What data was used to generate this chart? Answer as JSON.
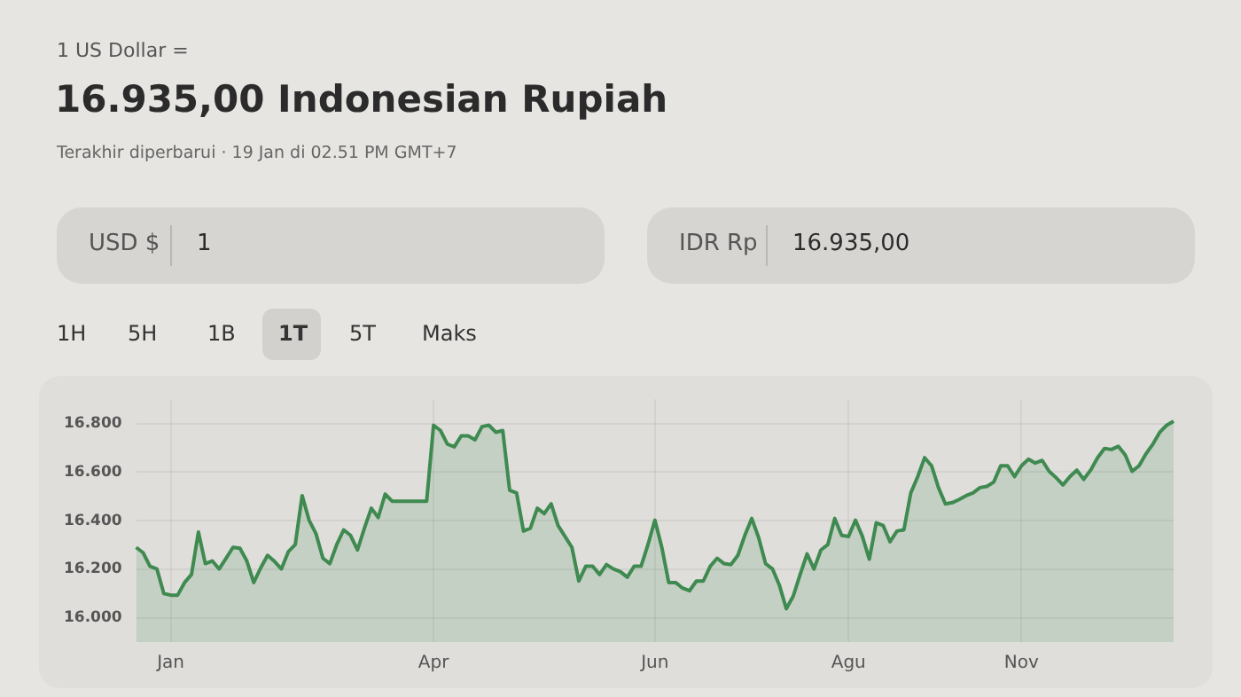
{
  "chart_data": {
    "type": "area",
    "title": "16.935,00 Indonesian Rupiah",
    "subtitle": "Terakhir diperbarui · 19 Jan di 02.51 PM GMT+7",
    "annotations": [
      "1 US Dollar =",
      "USD $",
      "1",
      "IDR Rp",
      "16.935,00",
      "1H",
      "5H",
      "1B",
      "1T",
      "5T",
      "Maks"
    ],
    "color": "#3f8a50",
    "categories": [
      null,
      null,
      null,
      null,
      null,
      "Jan",
      null,
      null,
      null,
      null,
      null,
      null,
      null,
      null,
      null,
      null,
      null,
      null,
      null,
      null,
      null,
      null,
      null,
      null,
      null,
      null,
      null,
      null,
      null,
      null,
      null,
      null,
      null,
      null,
      null,
      null,
      null,
      null,
      null,
      null,
      null,
      null,
      null,
      "Apr",
      null,
      null,
      null,
      null,
      null,
      null,
      null,
      null,
      null,
      null,
      null,
      null,
      null,
      null,
      null,
      null,
      null,
      null,
      null,
      null,
      null,
      null,
      null,
      null,
      null,
      null,
      null,
      null,
      null,
      null,
      null,
      "Jun",
      null,
      null,
      null,
      null,
      null,
      null,
      null,
      null,
      null,
      null,
      null,
      null,
      null,
      null,
      null,
      null,
      null,
      null,
      null,
      null,
      null,
      null,
      null,
      null,
      null,
      null,
      null,
      "Agu",
      null,
      null,
      null,
      null,
      null,
      null,
      null,
      null,
      null,
      null,
      null,
      null,
      null,
      null,
      null,
      null,
      null,
      null,
      null,
      null,
      null,
      null,
      null,
      null,
      "Nov",
      null,
      null,
      null,
      null,
      null,
      null,
      null,
      null,
      null,
      null,
      null,
      null,
      null,
      null,
      null,
      null,
      null,
      null,
      null,
      null,
      null,
      null
    ],
    "values": [
      16290,
      16268,
      16212,
      16201,
      16100,
      16093,
      16093,
      16145,
      16178,
      16353,
      16223,
      16234,
      16201,
      16245,
      16290,
      16286,
      16234,
      16145,
      16205,
      16257,
      16232,
      16201,
      16272,
      16301,
      16503,
      16402,
      16346,
      16245,
      16223,
      16301,
      16362,
      16339,
      16279,
      16369,
      16451,
      16413,
      16509,
      16480,
      16480,
      16480,
      16480,
      16480,
      16480,
      16793,
      16771,
      16715,
      16704,
      16749,
      16749,
      16733,
      16787,
      16793,
      16764,
      16771,
      16525,
      16514,
      16357,
      16369,
      16451,
      16429,
      16469,
      16380,
      16335,
      16290,
      16151,
      16212,
      16212,
      16178,
      16219,
      16201,
      16190,
      16167,
      16212,
      16212,
      16301,
      16402,
      16290,
      16145,
      16145,
      16122,
      16111,
      16151,
      16151,
      16212,
      16245,
      16223,
      16219,
      16257,
      16339,
      16409,
      16330,
      16223,
      16201,
      16134,
      16037,
      16089,
      16178,
      16263,
      16201,
      16279,
      16301,
      16409,
      16339,
      16335,
      16402,
      16335,
      16241,
      16391,
      16380,
      16313,
      16357,
      16362,
      16514,
      16581,
      16659,
      16626,
      16536,
      16469,
      16474,
      16487,
      16503,
      16514,
      16536,
      16541,
      16559,
      16626,
      16626,
      16581,
      16626,
      16653,
      16637,
      16648,
      16603,
      16577,
      16547,
      16581,
      16608,
      16570,
      16608,
      16659,
      16697,
      16693,
      16706,
      16671,
      16603,
      16626,
      16675,
      16715,
      16764,
      16793,
      16809
    ],
    "ylim": [
      15900,
      16900
    ],
    "yticks": [
      {
        "value": 16000,
        "label": "16.000"
      },
      {
        "value": 16200,
        "label": "16.200"
      },
      {
        "value": 16400,
        "label": "16.400"
      },
      {
        "value": 16600,
        "label": "16.600"
      },
      {
        "value": 16800,
        "label": "16.800"
      }
    ],
    "grid": true,
    "marker": "none",
    "line_style": "solid"
  }
}
